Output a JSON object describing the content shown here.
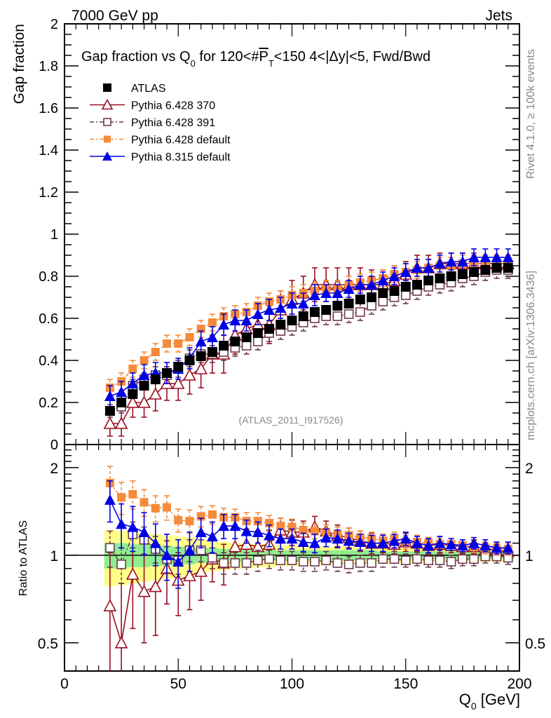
{
  "header": {
    "left": "7000 GeV pp",
    "right": "Jets"
  },
  "side_labels": {
    "rivet": "Rivet 4.1.0, ≥ 100k events",
    "mcplots": "mcplots.cern.ch [arXiv:1306.3436]"
  },
  "chart_data": [
    {
      "type": "scatter",
      "panel": "main",
      "title": "Gap fraction vs Q₀ for 120<#P̅T<150  4<|Δy|<5, Fwd/Bwd",
      "title_parts": {
        "pre": "Gap fraction vs Q",
        "sub0": "0",
        "mid": " for 120<#",
        "pbar": "P",
        "subT": "T",
        "post": "<150  4<|Δy|<5, Fwd/Bwd"
      },
      "ylabel": "Gap fraction",
      "xlabel": "Q0 [GeV]",
      "xlim": [
        0,
        200
      ],
      "ylim": [
        0,
        2
      ],
      "yticks": [
        "0",
        "0.2",
        "0.4",
        "0.6",
        "0.8",
        "1",
        "1.2",
        "1.4",
        "1.6",
        "1.8",
        "2"
      ],
      "watermark": "(ATLAS_2011_I917526)",
      "legend_position": "top-left",
      "x": [
        20,
        25,
        30,
        35,
        40,
        45,
        50,
        55,
        60,
        65,
        70,
        75,
        80,
        85,
        90,
        95,
        100,
        105,
        110,
        115,
        120,
        125,
        130,
        135,
        140,
        145,
        150,
        155,
        160,
        165,
        170,
        175,
        180,
        185,
        190,
        195
      ],
      "series": [
        {
          "name": "ATLAS",
          "color": "#000000",
          "marker": "filled-square",
          "line": "none",
          "values": [
            0.16,
            0.2,
            0.24,
            0.28,
            0.31,
            0.34,
            0.37,
            0.4,
            0.42,
            0.44,
            0.47,
            0.49,
            0.51,
            0.53,
            0.55,
            0.57,
            0.59,
            0.61,
            0.63,
            0.64,
            0.66,
            0.67,
            0.69,
            0.7,
            0.72,
            0.73,
            0.75,
            0.76,
            0.78,
            0.79,
            0.8,
            0.81,
            0.82,
            0.83,
            0.84,
            0.84
          ],
          "err": [
            0.02,
            0.02,
            0.02,
            0.02,
            0.02,
            0.02,
            0.02,
            0.02,
            0.02,
            0.02,
            0.02,
            0.02,
            0.02,
            0.02,
            0.02,
            0.02,
            0.02,
            0.02,
            0.02,
            0.02,
            0.02,
            0.02,
            0.02,
            0.02,
            0.02,
            0.02,
            0.02,
            0.02,
            0.02,
            0.02,
            0.02,
            0.02,
            0.02,
            0.02,
            0.02,
            0.02
          ]
        },
        {
          "name": "Pythia 6.428 370",
          "color": "#990d1f",
          "marker": "open-triangle",
          "line": "solid",
          "values": [
            0.1,
            0.1,
            0.2,
            0.2,
            0.24,
            0.29,
            0.29,
            0.33,
            0.36,
            0.43,
            0.43,
            0.52,
            0.55,
            0.57,
            0.57,
            0.64,
            0.69,
            0.72,
            0.76,
            0.76,
            0.76,
            0.76,
            0.76,
            0.76,
            0.76,
            0.78,
            0.81,
            0.84,
            0.84,
            0.86,
            0.86,
            0.86,
            0.86,
            0.86,
            0.86,
            0.86
          ],
          "err": [
            0.06,
            0.06,
            0.07,
            0.07,
            0.08,
            0.08,
            0.08,
            0.09,
            0.09,
            0.09,
            0.09,
            0.09,
            0.09,
            0.09,
            0.09,
            0.09,
            0.09,
            0.08,
            0.08,
            0.08,
            0.08,
            0.08,
            0.08,
            0.07,
            0.07,
            0.07,
            0.06,
            0.06,
            0.06,
            0.05,
            0.05,
            0.05,
            0.05,
            0.04,
            0.04,
            0.04
          ]
        },
        {
          "name": "Pythia 6.428 391",
          "color": "#6e3a4f",
          "marker": "open-square",
          "line": "dash-dot",
          "values": [
            0.16,
            0.18,
            0.28,
            0.31,
            0.33,
            0.33,
            0.36,
            0.41,
            0.43,
            0.43,
            0.44,
            0.46,
            0.47,
            0.49,
            0.53,
            0.54,
            0.56,
            0.58,
            0.6,
            0.61,
            0.61,
            0.62,
            0.63,
            0.66,
            0.68,
            0.7,
            0.71,
            0.73,
            0.75,
            0.76,
            0.77,
            0.79,
            0.8,
            0.82,
            0.83,
            0.83
          ],
          "err": [
            0.03,
            0.03,
            0.03,
            0.03,
            0.04,
            0.04,
            0.04,
            0.04,
            0.04,
            0.04,
            0.04,
            0.04,
            0.04,
            0.04,
            0.04,
            0.04,
            0.04,
            0.04,
            0.04,
            0.04,
            0.04,
            0.04,
            0.04,
            0.04,
            0.04,
            0.04,
            0.04,
            0.04,
            0.04,
            0.04,
            0.04,
            0.04,
            0.04,
            0.04,
            0.04,
            0.04
          ]
        },
        {
          "name": "Pythia 6.428 default",
          "color": "#f68a3a",
          "marker": "filled-square",
          "line": "dash-dot",
          "values": [
            0.27,
            0.3,
            0.36,
            0.4,
            0.44,
            0.48,
            0.48,
            0.51,
            0.55,
            0.58,
            0.61,
            0.62,
            0.63,
            0.66,
            0.68,
            0.69,
            0.71,
            0.72,
            0.73,
            0.74,
            0.74,
            0.76,
            0.77,
            0.78,
            0.79,
            0.81,
            0.82,
            0.83,
            0.84,
            0.85,
            0.85,
            0.86,
            0.86,
            0.86,
            0.86,
            0.86
          ],
          "err": [
            0.04,
            0.04,
            0.04,
            0.04,
            0.04,
            0.04,
            0.04,
            0.04,
            0.04,
            0.04,
            0.04,
            0.04,
            0.04,
            0.04,
            0.04,
            0.04,
            0.04,
            0.04,
            0.04,
            0.04,
            0.04,
            0.04,
            0.04,
            0.04,
            0.04,
            0.04,
            0.04,
            0.04,
            0.04,
            0.04,
            0.04,
            0.04,
            0.04,
            0.04,
            0.04,
            0.04
          ]
        },
        {
          "name": "Pythia 8.315 default",
          "color": "#0000e6",
          "marker": "filled-triangle",
          "line": "solid",
          "values": [
            0.23,
            0.25,
            0.29,
            0.33,
            0.34,
            0.34,
            0.36,
            0.41,
            0.49,
            0.51,
            0.57,
            0.59,
            0.59,
            0.62,
            0.64,
            0.65,
            0.67,
            0.67,
            0.71,
            0.72,
            0.72,
            0.74,
            0.76,
            0.76,
            0.78,
            0.8,
            0.82,
            0.84,
            0.84,
            0.86,
            0.87,
            0.87,
            0.89,
            0.89,
            0.89,
            0.89
          ],
          "err": [
            0.05,
            0.05,
            0.05,
            0.05,
            0.05,
            0.05,
            0.05,
            0.05,
            0.05,
            0.05,
            0.05,
            0.05,
            0.05,
            0.05,
            0.05,
            0.05,
            0.05,
            0.05,
            0.05,
            0.04,
            0.04,
            0.04,
            0.04,
            0.04,
            0.04,
            0.04,
            0.04,
            0.04,
            0.04,
            0.04,
            0.04,
            0.04,
            0.04,
            0.04,
            0.04,
            0.04
          ]
        }
      ]
    },
    {
      "type": "scatter",
      "panel": "ratio",
      "ylabel": "Ratio to ATLAS",
      "xlabel": "Q0 [GeV]",
      "xlim": [
        0,
        200
      ],
      "ylim": [
        0.4,
        2.4
      ],
      "yscale": "log",
      "yticks": [
        "0.5",
        "1",
        "2"
      ],
      "xticks": [
        "0",
        "50",
        "100",
        "150",
        "200"
      ],
      "x": [
        20,
        25,
        30,
        35,
        40,
        45,
        50,
        55,
        60,
        65,
        70,
        75,
        80,
        85,
        90,
        95,
        100,
        105,
        110,
        115,
        120,
        125,
        130,
        135,
        140,
        145,
        150,
        155,
        160,
        165,
        170,
        175,
        180,
        185,
        190,
        195
      ],
      "band": {
        "inner_color": "#90ee90",
        "outer_color": "#ffff88",
        "inner_halfwidth": [
          0.1,
          0.1,
          0.09,
          0.09,
          0.08,
          0.08,
          0.07,
          0.07,
          0.06,
          0.06,
          0.05,
          0.05,
          0.05,
          0.04,
          0.04,
          0.04,
          0.04,
          0.04,
          0.04,
          0.04,
          0.04,
          0.04,
          0.04,
          0.04,
          0.03,
          0.03,
          0.03,
          0.03,
          0.03,
          0.03,
          0.03,
          0.03,
          0.03,
          0.03,
          0.03,
          0.03
        ],
        "outer_halfwidth": [
          0.22,
          0.21,
          0.2,
          0.19,
          0.18,
          0.17,
          0.16,
          0.15,
          0.13,
          0.12,
          0.11,
          0.1,
          0.1,
          0.09,
          0.09,
          0.08,
          0.08,
          0.08,
          0.07,
          0.07,
          0.07,
          0.07,
          0.06,
          0.06,
          0.06,
          0.06,
          0.06,
          0.06,
          0.05,
          0.05,
          0.05,
          0.05,
          0.05,
          0.05,
          0.05,
          0.05
        ]
      },
      "series": [
        {
          "name": "Pythia 6.428 370",
          "color": "#990d1f",
          "marker": "open-triangle",
          "line": "solid",
          "values": [
            0.67,
            0.5,
            0.86,
            0.75,
            0.78,
            0.9,
            0.82,
            0.85,
            0.88,
            0.97,
            0.94,
            1.07,
            1.09,
            1.07,
            1.09,
            1.22,
            1.2,
            1.2,
            1.25,
            1.21,
            1.17,
            1.15,
            1.12,
            1.1,
            1.1,
            1.09,
            1.11,
            1.1,
            1.08,
            1.09,
            1.08,
            1.07,
            1.07,
            1.05,
            1.04,
            1.03
          ],
          "err": [
            0.35,
            0.3,
            0.3,
            0.25,
            0.25,
            0.22,
            0.2,
            0.2,
            0.18,
            0.16,
            0.15,
            0.15,
            0.14,
            0.14,
            0.13,
            0.12,
            0.12,
            0.11,
            0.11,
            0.1,
            0.1,
            0.09,
            0.09,
            0.09,
            0.08,
            0.08,
            0.08,
            0.07,
            0.07,
            0.07,
            0.06,
            0.06,
            0.06,
            0.05,
            0.05,
            0.05
          ]
        },
        {
          "name": "Pythia 6.428 391",
          "color": "#6e3a4f",
          "marker": "open-square",
          "line": "dash-dot",
          "values": [
            1.06,
            0.93,
            1.18,
            1.13,
            1.05,
            0.97,
            0.96,
            1.04,
            1.04,
            0.98,
            0.94,
            0.94,
            0.94,
            0.96,
            0.97,
            0.96,
            0.96,
            0.95,
            0.95,
            0.96,
            0.94,
            0.93,
            0.94,
            0.94,
            0.97,
            0.97,
            0.96,
            0.97,
            0.96,
            0.96,
            0.95,
            0.97,
            0.97,
            0.99,
            0.99,
            0.98
          ],
          "err": [
            0.15,
            0.13,
            0.12,
            0.12,
            0.11,
            0.1,
            0.1,
            0.09,
            0.09,
            0.08,
            0.08,
            0.08,
            0.08,
            0.08,
            0.07,
            0.07,
            0.07,
            0.07,
            0.07,
            0.07,
            0.06,
            0.06,
            0.06,
            0.06,
            0.06,
            0.06,
            0.05,
            0.05,
            0.05,
            0.05,
            0.05,
            0.05,
            0.05,
            0.05,
            0.05,
            0.05
          ]
        },
        {
          "name": "Pythia 6.428 default",
          "color": "#f68a3a",
          "marker": "filled-square",
          "line": "dash-dot",
          "values": [
            1.77,
            1.58,
            1.62,
            1.52,
            1.45,
            1.46,
            1.32,
            1.31,
            1.36,
            1.38,
            1.35,
            1.35,
            1.31,
            1.31,
            1.29,
            1.26,
            1.25,
            1.22,
            1.21,
            1.2,
            1.18,
            1.17,
            1.15,
            1.14,
            1.12,
            1.14,
            1.11,
            1.11,
            1.1,
            1.09,
            1.09,
            1.08,
            1.07,
            1.06,
            1.05,
            1.05
          ],
          "err": [
            0.25,
            0.2,
            0.18,
            0.16,
            0.15,
            0.14,
            0.12,
            0.12,
            0.11,
            0.1,
            0.1,
            0.09,
            0.09,
            0.09,
            0.08,
            0.08,
            0.08,
            0.07,
            0.07,
            0.07,
            0.07,
            0.07,
            0.06,
            0.06,
            0.06,
            0.06,
            0.06,
            0.06,
            0.05,
            0.05,
            0.05,
            0.05,
            0.05,
            0.05,
            0.05,
            0.05
          ]
        },
        {
          "name": "Pythia 8.315 default",
          "color": "#0000e6",
          "marker": "filled-triangle",
          "line": "solid",
          "values": [
            1.55,
            1.28,
            1.25,
            1.2,
            1.1,
            1.0,
            0.95,
            1.04,
            1.2,
            1.16,
            1.26,
            1.26,
            1.21,
            1.2,
            1.17,
            1.14,
            1.14,
            1.11,
            1.1,
            1.15,
            1.14,
            1.12,
            1.11,
            1.1,
            1.1,
            1.12,
            1.14,
            1.1,
            1.08,
            1.1,
            1.09,
            1.08,
            1.1,
            1.08,
            1.06,
            1.06
          ],
          "err": [
            0.25,
            0.22,
            0.22,
            0.2,
            0.18,
            0.18,
            0.18,
            0.16,
            0.14,
            0.14,
            0.12,
            0.12,
            0.11,
            0.1,
            0.1,
            0.09,
            0.09,
            0.08,
            0.08,
            0.08,
            0.08,
            0.07,
            0.07,
            0.07,
            0.07,
            0.06,
            0.06,
            0.06,
            0.06,
            0.06,
            0.05,
            0.05,
            0.05,
            0.05,
            0.05,
            0.05
          ]
        }
      ]
    }
  ]
}
